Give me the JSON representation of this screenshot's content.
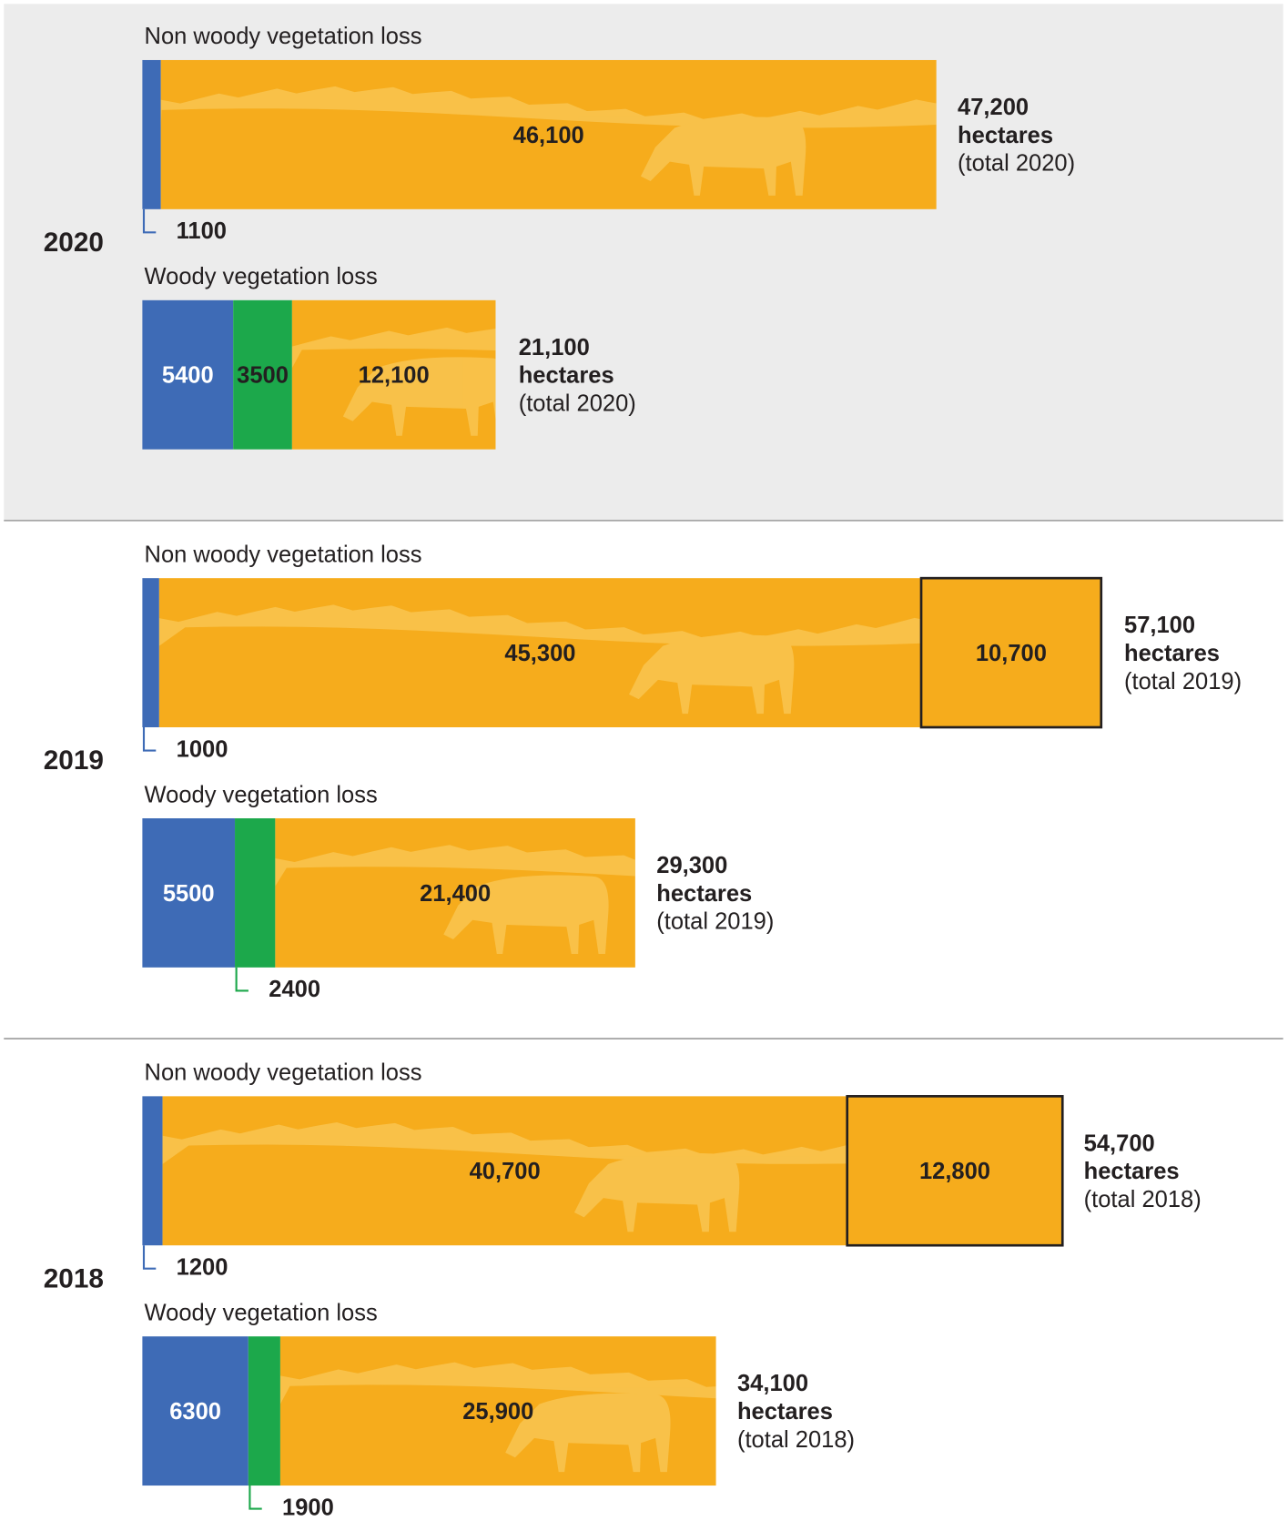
{
  "chart_data": [
    {
      "type": "bar",
      "year": "2020",
      "bars": [
        {
          "title": "Non woody vegetation loss",
          "values": [
            1100,
            46100
          ],
          "value_labels": [
            "1100",
            "46,100"
          ],
          "colors": [
            "#3e6bb6",
            "#f6ac1c"
          ],
          "outlined": [
            false,
            false
          ],
          "total": 47200,
          "total_label": "47,200",
          "unit": "hectares",
          "note": "(total 2020)"
        },
        {
          "title": "Woody vegetation loss",
          "values": [
            5400,
            3500,
            12100
          ],
          "value_labels": [
            "5400",
            "3500",
            "12,100"
          ],
          "colors": [
            "#3e6bb6",
            "#1ca84b",
            "#f6ac1c"
          ],
          "outlined": [
            false,
            false,
            false
          ],
          "total": 21100,
          "total_label": "21,100",
          "unit": "hectares",
          "note": "(total 2020)"
        }
      ]
    },
    {
      "type": "bar",
      "year": "2019",
      "bars": [
        {
          "title": "Non woody vegetation loss",
          "values": [
            1000,
            45300,
            10700
          ],
          "value_labels": [
            "1000",
            "45,300",
            "10,700"
          ],
          "colors": [
            "#3e6bb6",
            "#f6ac1c",
            "#f6ac1c"
          ],
          "outlined": [
            false,
            false,
            true
          ],
          "total": 57100,
          "total_label": "57,100",
          "unit": "hectares",
          "note": "(total 2019)"
        },
        {
          "title": "Woody vegetation loss",
          "values": [
            5500,
            2400,
            21400
          ],
          "value_labels": [
            "5500",
            "2400",
            "21,400"
          ],
          "colors": [
            "#3e6bb6",
            "#1ca84b",
            "#f6ac1c"
          ],
          "outlined": [
            false,
            false,
            false
          ],
          "total": 29300,
          "total_label": "29,300",
          "unit": "hectares",
          "note": "(total 2019)"
        }
      ]
    },
    {
      "type": "bar",
      "year": "2018",
      "bars": [
        {
          "title": "Non woody vegetation loss",
          "values": [
            1200,
            40700,
            12800
          ],
          "value_labels": [
            "1200",
            "40,700",
            "12,800"
          ],
          "colors": [
            "#3e6bb6",
            "#f6ac1c",
            "#f6ac1c"
          ],
          "outlined": [
            false,
            false,
            true
          ],
          "total": 54700,
          "total_label": "54,700",
          "unit": "hectares",
          "note": "(total 2018)"
        },
        {
          "title": "Woody vegetation loss",
          "values": [
            6300,
            1900,
            25900
          ],
          "value_labels": [
            "6300",
            "1900",
            "25,900"
          ],
          "colors": [
            "#3e6bb6",
            "#1ca84b",
            "#f6ac1c"
          ],
          "outlined": [
            false,
            false,
            false
          ],
          "total": 34100,
          "total_label": "34,100",
          "unit": "hectares",
          "note": "(total 2018)"
        }
      ]
    }
  ]
}
